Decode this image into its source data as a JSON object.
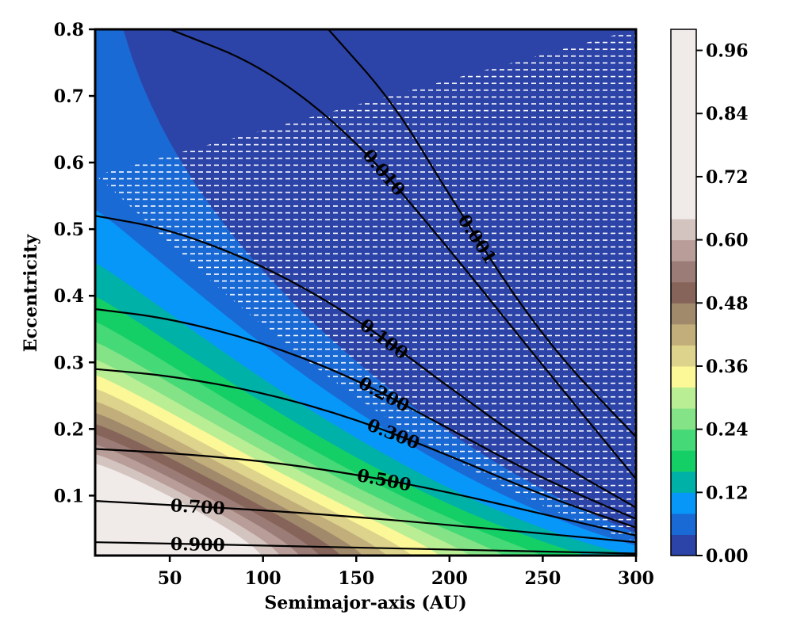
{
  "chart_data": {
    "type": "contour",
    "xlabel": "Semimajor-axis (AU)",
    "ylabel": "Eccentricity",
    "xlim": [
      10,
      300
    ],
    "ylim": [
      0.01,
      0.8
    ],
    "xticks": [
      50,
      100,
      150,
      200,
      250,
      300
    ],
    "xtick_labels": [
      "50",
      "100",
      "150",
      "200",
      "250",
      "300"
    ],
    "yticks": [
      0.1,
      0.2,
      0.3,
      0.4,
      0.5,
      0.6,
      0.7,
      0.8
    ],
    "ytick_labels": [
      "0.1",
      "0.2",
      "0.3",
      "0.4",
      "0.5",
      "0.6",
      "0.7",
      "0.8"
    ],
    "colorbar": {
      "levels": [
        0.0,
        0.04,
        0.08,
        0.12,
        0.16,
        0.2,
        0.24,
        0.28,
        0.32,
        0.36,
        0.4,
        0.44,
        0.48,
        0.52,
        0.56,
        0.6,
        0.64,
        0.68,
        0.72,
        0.76,
        0.8,
        0.84,
        0.88,
        0.92,
        0.96,
        1.0
      ],
      "colors": [
        "#2c43a8",
        "#1a6ad6",
        "#0797f8",
        "#00b1a8",
        "#14cf66",
        "#46d977",
        "#84e386",
        "#b9ee94",
        "#fcf797",
        "#ddd38c",
        "#c2ae7a",
        "#a1896c",
        "#866459",
        "#9b7c77",
        "#b89d99",
        "#d4c4c0",
        "#f0ebe9"
      ],
      "tick_values": [
        0.0,
        0.12,
        0.24,
        0.36,
        0.48,
        0.6,
        0.72,
        0.84,
        0.96
      ],
      "tick_labels": [
        "0.00",
        "0.12",
        "0.24",
        "0.36",
        "0.48",
        "0.60",
        "0.72",
        "0.84",
        "0.96"
      ]
    },
    "contour_lines": [
      {
        "label": "0.900",
        "points": [
          [
            10,
            0.03
          ],
          [
            50,
            0.028
          ],
          [
            100,
            0.025
          ],
          [
            150,
            0.022
          ],
          [
            200,
            0.019
          ],
          [
            250,
            0.016
          ],
          [
            300,
            0.013
          ]
        ]
      },
      {
        "label": "0.700",
        "points": [
          [
            10,
            0.092
          ],
          [
            50,
            0.086
          ],
          [
            100,
            0.078
          ],
          [
            150,
            0.068
          ],
          [
            200,
            0.056
          ],
          [
            250,
            0.043
          ],
          [
            300,
            0.03
          ]
        ]
      },
      {
        "label": "0.500",
        "points": [
          [
            10,
            0.17
          ],
          [
            50,
            0.164
          ],
          [
            100,
            0.152
          ],
          [
            150,
            0.132
          ],
          [
            200,
            0.105
          ],
          [
            250,
            0.072
          ],
          [
            300,
            0.04
          ]
        ]
      },
      {
        "label": "0.300",
        "points": [
          [
            10,
            0.29
          ],
          [
            50,
            0.28
          ],
          [
            100,
            0.255
          ],
          [
            150,
            0.215
          ],
          [
            200,
            0.16
          ],
          [
            250,
            0.1
          ],
          [
            300,
            0.052
          ]
        ]
      },
      {
        "label": "0.200",
        "points": [
          [
            10,
            0.38
          ],
          [
            50,
            0.366
          ],
          [
            100,
            0.33
          ],
          [
            150,
            0.275
          ],
          [
            200,
            0.2
          ],
          [
            250,
            0.125
          ],
          [
            300,
            0.065
          ]
        ]
      },
      {
        "label": "0.100",
        "points": [
          [
            10,
            0.52
          ],
          [
            50,
            0.5
          ],
          [
            100,
            0.446
          ],
          [
            150,
            0.367
          ],
          [
            200,
            0.262
          ],
          [
            250,
            0.162
          ],
          [
            300,
            0.082
          ]
        ]
      },
      {
        "label": "0.010",
        "points": [
          [
            50,
            0.8
          ],
          [
            100,
            0.745
          ],
          [
            150,
            0.635
          ],
          [
            200,
            0.47
          ],
          [
            250,
            0.295
          ],
          [
            300,
            0.125
          ]
        ]
      },
      {
        "label": "0.001",
        "points": [
          [
            135,
            0.8
          ],
          [
            170,
            0.69
          ],
          [
            200,
            0.55
          ],
          [
            250,
            0.335
          ],
          [
            300,
            0.188
          ]
        ]
      }
    ]
  }
}
